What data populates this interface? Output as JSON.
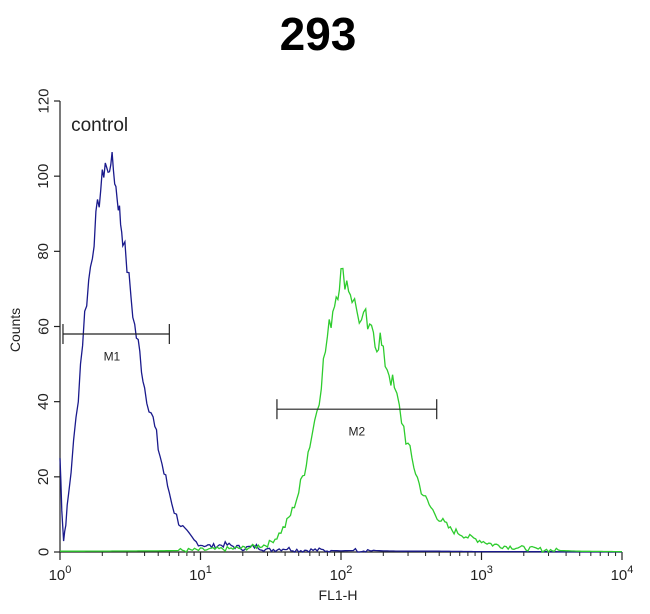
{
  "chart_data": {
    "type": "line",
    "title": "293",
    "xlabel": "FL1-H",
    "ylabel": "Counts",
    "x_scale": "log",
    "xlim": [
      1,
      10000
    ],
    "ylim": [
      0,
      120
    ],
    "x_ticks": [
      {
        "value": 1,
        "base": "10",
        "exp": "0"
      },
      {
        "value": 10,
        "base": "10",
        "exp": "1"
      },
      {
        "value": 100,
        "base": "10",
        "exp": "2"
      },
      {
        "value": 1000,
        "base": "10",
        "exp": "3"
      },
      {
        "value": 10000,
        "base": "10",
        "exp": "4"
      }
    ],
    "y_ticks": [
      0,
      20,
      40,
      60,
      80,
      100,
      120
    ],
    "grid": false,
    "annotations": [
      {
        "text": "control",
        "x": 1.2,
        "y": 112
      },
      {
        "text": "M1",
        "x": 2.5,
        "y": 51
      }
    ],
    "gates": [
      {
        "label": "M1",
        "x_start": 1.05,
        "x_end": 6,
        "y": 58,
        "label_y": 51
      },
      {
        "label": "M2",
        "x_start": 35,
        "x_end": 480,
        "y": 38,
        "label_y": 31
      }
    ],
    "series": [
      {
        "name": "control",
        "color": "#1a1a8c",
        "x": [
          1.0,
          1.03,
          1.06,
          1.1,
          1.15,
          1.2,
          1.3,
          1.4,
          1.5,
          1.6,
          1.7,
          1.8,
          1.9,
          2.0,
          2.1,
          2.2,
          2.3,
          2.4,
          2.5,
          2.6,
          2.7,
          2.8,
          3.0,
          3.2,
          3.4,
          3.6,
          3.8,
          4.0,
          4.3,
          4.6,
          5.0,
          5.5,
          6.0,
          6.5,
          7.0,
          8.0,
          9.0,
          10,
          12,
          15,
          20,
          25,
          30,
          40,
          50,
          70,
          100,
          150,
          200,
          300,
          500,
          1000,
          2000,
          10000
        ],
        "y": [
          25,
          12,
          3,
          8,
          15,
          22,
          35,
          50,
          63,
          72,
          80,
          88,
          94,
          99,
          104,
          100,
          105,
          102,
          97,
          93,
          88,
          84,
          76,
          68,
          60,
          55,
          50,
          44,
          40,
          35,
          28,
          21,
          16,
          11,
          8,
          5,
          3,
          2,
          1.5,
          2,
          1,
          1.5,
          0.5,
          1,
          0.5,
          0.5,
          0.3,
          0.5,
          0.3,
          0.2,
          0.2,
          0.1,
          0.1,
          0
        ]
      },
      {
        "name": "",
        "color": "#2ecc2e",
        "x": [
          1,
          5,
          10,
          15,
          20,
          25,
          30,
          35,
          40,
          45,
          50,
          55,
          60,
          65,
          70,
          75,
          80,
          85,
          90,
          95,
          100,
          110,
          120,
          130,
          140,
          150,
          160,
          170,
          180,
          190,
          200,
          220,
          240,
          260,
          280,
          300,
          330,
          360,
          400,
          450,
          500,
          600,
          700,
          800,
          1000,
          1200,
          1500,
          2000,
          3000,
          5000,
          10000
        ],
        "y": [
          0.2,
          0.3,
          0.5,
          0.8,
          1,
          1.5,
          2,
          4,
          7,
          11,
          16,
          22,
          29,
          35,
          42,
          50,
          57,
          62,
          67,
          70,
          74,
          72,
          68,
          64,
          61,
          62,
          58,
          59,
          55,
          57,
          52,
          48,
          43,
          38,
          33,
          28,
          23,
          18,
          14,
          11,
          9,
          6,
          5,
          4,
          3,
          2,
          1.5,
          1,
          0.5,
          0.2,
          0.1
        ]
      }
    ]
  }
}
